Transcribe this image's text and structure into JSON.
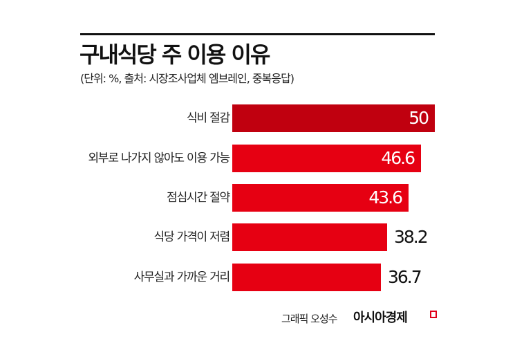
{
  "header": {
    "title": "구내식당 주 이용 이유",
    "subtitle": "(단위: %, 출처: 시장조사업체 엠브레인, 중복응답)"
  },
  "footer": {
    "credit": "그래픽 오성수",
    "brand": "아시아경제"
  },
  "colors": {
    "highlight_bar": "#c0000f",
    "bar": "#e60012",
    "rule": "#111111"
  },
  "bars": [
    {
      "label": "식비 절감",
      "value": "50",
      "color": "#c0000f",
      "value_inside": true
    },
    {
      "label": "외부로 나가지 않아도 이용 가능",
      "value": "46.6",
      "color": "#e60012",
      "value_inside": true
    },
    {
      "label": "점심시간 절약",
      "value": "43.6",
      "color": "#e60012",
      "value_inside": true
    },
    {
      "label": "식당 가격이 저렴",
      "value": "38.2",
      "color": "#e60012",
      "value_inside": false
    },
    {
      "label": "사무실과 가까운 거리",
      "value": "36.7",
      "color": "#e60012",
      "value_inside": false
    }
  ],
  "chart_data": {
    "type": "bar",
    "orientation": "horizontal",
    "title": "구내식당 주 이용 이유",
    "subtitle": "(단위: %, 출처: 시장조사업체 엠브레인, 중복응답)",
    "categories": [
      "식비 절감",
      "외부로 나가지 않아도 이용 가능",
      "점심시간 절약",
      "식당 가격이 저렴",
      "사무실과 가까운 거리"
    ],
    "values": [
      50,
      46.6,
      43.6,
      38.2,
      36.7
    ],
    "unit": "%",
    "xlabel": "",
    "ylabel": "",
    "grid": false,
    "legend": null,
    "source": "시장조사업체 엠브레인",
    "note": "중복응답"
  }
}
